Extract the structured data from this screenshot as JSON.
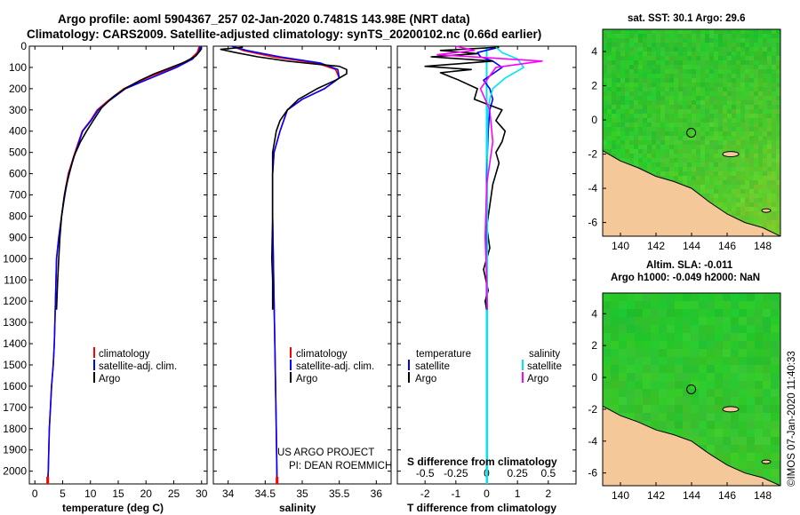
{
  "title": {
    "line1": "Argo profile: aoml 5904367_257 02-Jan-2020 0.7481S 143.98E (NRT data)",
    "line2": "Climatology: CARS2009. Satellite-adjusted climatology: synTS_20200102.nc (0.66d earlier)"
  },
  "colors": {
    "climatology": "#ff0000",
    "satellite": "#0000ff",
    "argo": "#000000",
    "salinity_satellite": "#00e5ee",
    "salinity_argo": "#ff00ff",
    "land": "#f5c89a",
    "sea_green": "#3ec83a"
  },
  "chart_data": [
    {
      "type": "line",
      "id": "temperature",
      "xlabel": "temperature (deg C)",
      "ylabel": "",
      "xlim": [
        -1,
        31
      ],
      "ylim": [
        2060,
        0
      ],
      "xticks": [
        0,
        5,
        10,
        15,
        20,
        25,
        30
      ],
      "yticks": [
        0,
        100,
        200,
        300,
        400,
        500,
        600,
        700,
        800,
        900,
        1000,
        1100,
        1200,
        1300,
        1400,
        1500,
        1600,
        1700,
        1800,
        1900,
        2000
      ],
      "series": [
        {
          "name": "climatology",
          "color": "#ff0000",
          "x": [
            29.6,
            29.2,
            28.0,
            25.0,
            21.0,
            18.5,
            16.0,
            13.0,
            11.2,
            10.0,
            8.5,
            7.2,
            6.0,
            5.3,
            4.8,
            4.3,
            3.9,
            3.7,
            3.5,
            3.3,
            3.0,
            2.8,
            2.6,
            2.5,
            2.4,
            2.3
          ],
          "y": [
            0,
            30,
            60,
            100,
            140,
            170,
            200,
            260,
            300,
            350,
            400,
            500,
            600,
            700,
            800,
            900,
            1000,
            1200,
            1400,
            1500,
            1600,
            1700,
            1800,
            1900,
            2000,
            2060
          ]
        },
        {
          "name": "satellite-adj. clim.",
          "color": "#0000ff",
          "x": [
            29.8,
            29.4,
            28.4,
            25.5,
            21.8,
            19.0,
            16.3,
            13.2,
            11.4,
            10.1,
            8.6,
            7.3,
            6.1,
            5.4,
            4.8,
            4.3,
            3.9,
            3.7,
            3.5,
            3.3,
            3.0,
            2.8,
            2.6,
            2.5,
            2.4,
            2.3
          ],
          "y": [
            0,
            30,
            60,
            100,
            140,
            170,
            200,
            260,
            300,
            350,
            400,
            500,
            600,
            700,
            800,
            900,
            1000,
            1200,
            1400,
            1500,
            1600,
            1700,
            1800,
            1900,
            2000,
            2060
          ]
        },
        {
          "name": "Argo",
          "color": "#000000",
          "x": [
            30.0,
            29.8,
            29.0,
            27.0,
            24.0,
            21.5,
            19.0,
            16.5,
            14.0,
            12.0,
            10.5,
            9.3,
            8.2,
            7.0,
            6.2,
            5.6,
            5.2,
            4.8,
            4.5,
            4.3,
            4.1,
            3.9
          ],
          "y": [
            5,
            20,
            45,
            75,
            105,
            130,
            160,
            195,
            240,
            290,
            350,
            400,
            450,
            520,
            600,
            660,
            720,
            800,
            900,
            1000,
            1100,
            1240
          ]
        }
      ]
    },
    {
      "type": "line",
      "id": "salinity",
      "xlabel": "salinity",
      "ylabel": "",
      "xlim": [
        33.8,
        36.2
      ],
      "ylim": [
        2060,
        0
      ],
      "xticks": [
        34,
        34.5,
        35,
        35.5,
        36
      ],
      "series": [
        {
          "name": "climatology",
          "color": "#ff0000",
          "x": [
            34.05,
            34.2,
            34.6,
            35.2,
            35.45,
            35.5,
            35.3,
            35.0,
            34.8,
            34.7,
            34.62,
            34.6,
            34.6,
            34.61,
            34.62,
            34.63,
            34.64,
            34.65,
            34.66
          ],
          "y": [
            0,
            20,
            50,
            80,
            110,
            150,
            200,
            250,
            300,
            400,
            500,
            600,
            800,
            1000,
            1200,
            1400,
            1600,
            1800,
            2060
          ]
        },
        {
          "name": "satellite-adj. clim.",
          "color": "#0000ff",
          "x": [
            34.05,
            34.25,
            34.7,
            35.25,
            35.48,
            35.5,
            35.3,
            35.0,
            34.8,
            34.7,
            34.62,
            34.6,
            34.6,
            34.61,
            34.62,
            34.63,
            34.64,
            34.65,
            34.66
          ],
          "y": [
            0,
            20,
            50,
            80,
            110,
            150,
            200,
            250,
            300,
            400,
            500,
            600,
            800,
            1000,
            1200,
            1400,
            1600,
            1800,
            2060
          ]
        },
        {
          "name": "Argo",
          "color": "#000000",
          "x": [
            34.2,
            33.9,
            34.1,
            34.4,
            34.8,
            35.2,
            35.5,
            35.6,
            35.6,
            35.45,
            35.2,
            34.95,
            34.8,
            34.7,
            34.65,
            34.6,
            34.6,
            34.6,
            34.59,
            34.6,
            34.6
          ],
          "y": [
            5,
            15,
            30,
            50,
            70,
            85,
            95,
            110,
            130,
            160,
            200,
            250,
            300,
            350,
            400,
            500,
            600,
            800,
            1000,
            1100,
            1240
          ]
        }
      ]
    },
    {
      "type": "line",
      "id": "difference",
      "xlabel": "T difference from climatology",
      "xlabel2": "S difference from climatology",
      "xlim": [
        -2.9,
        2.9
      ],
      "ylim": [
        2060,
        0
      ],
      "xticks": [
        -2,
        -1,
        0,
        1,
        2
      ],
      "xticks2_labels": [
        "-0.5",
        "-0.25",
        "0",
        "0.25",
        "0.5"
      ],
      "legend": {
        "temperature_header": "temperature",
        "salinity_header": "salinity",
        "satellite": "satellite",
        "argo": "Argo"
      },
      "series": [
        {
          "name": "temperature satellite",
          "color": "#0000ff",
          "x": [
            0.4,
            -0.3,
            -0.2,
            0.2,
            0.5,
            0.2,
            -0.1,
            0.1,
            0.2,
            0.1,
            0.05,
            0,
            0,
            0,
            0
          ],
          "y": [
            5,
            30,
            50,
            70,
            100,
            130,
            160,
            200,
            250,
            300,
            400,
            600,
            900,
            1200,
            1240
          ]
        },
        {
          "name": "temperature Argo",
          "color": "#000000",
          "x": [
            0.4,
            -1.5,
            -0.3,
            -1.8,
            0.2,
            -2.0,
            -0.5,
            -1.5,
            -0.9,
            -0.3,
            -0.4,
            0.5,
            0.3,
            0.6,
            0.5,
            0.3,
            0.4,
            0.2,
            0.1,
            0,
            0.1,
            -0.1,
            0.05,
            -0.05,
            0
          ],
          "y": [
            5,
            20,
            35,
            50,
            70,
            95,
            110,
            125,
            160,
            200,
            250,
            300,
            350,
            400,
            450,
            500,
            550,
            650,
            750,
            850,
            950,
            1050,
            1150,
            1200,
            1240
          ]
        },
        {
          "name": "salinity satellite",
          "color": "#00e5ee",
          "x": [
            0.3,
            0.5,
            1.0,
            1.2,
            0.6,
            0.2,
            0.1,
            0.05,
            0.02,
            0.02,
            0.02,
            0.02,
            0.02,
            0.02,
            0.02
          ],
          "y": [
            5,
            30,
            60,
            100,
            150,
            200,
            250,
            300,
            400,
            600,
            1000,
            1400,
            1800,
            2000,
            2060
          ]
        },
        {
          "name": "salinity Argo",
          "color": "#ff00ff",
          "x": [
            -1.0,
            -0.4,
            -1.6,
            1.8,
            0.3,
            -0.2,
            0.1,
            0.2,
            0.0,
            -0.05,
            0.0,
            0.02
          ],
          "y": [
            0,
            20,
            40,
            70,
            100,
            200,
            300,
            450,
            650,
            900,
            1100,
            1240
          ]
        }
      ]
    },
    {
      "type": "heatmap",
      "id": "sst_map",
      "title": "sat. SST: 30.1  Argo: 29.6",
      "xlim": [
        139,
        149
      ],
      "ylim": [
        -6.8,
        5.3
      ],
      "xticks": [
        140,
        142,
        144,
        146,
        148
      ],
      "yticks": [
        4,
        2,
        0,
        -2,
        -4,
        -6
      ],
      "argo_position": [
        143.98,
        -0.7481
      ]
    },
    {
      "type": "heatmap",
      "id": "sla_map",
      "title": "Altim. SLA: -0.011",
      "title2": "Argo h1000: -0.049 h2000: NaN",
      "xlim": [
        139,
        149
      ],
      "ylim": [
        -6.8,
        5.3
      ],
      "xticks": [
        140,
        142,
        144,
        146,
        148
      ],
      "yticks": [
        4,
        2,
        0,
        -2,
        -4,
        -6
      ],
      "argo_position": [
        143.98,
        -0.7481
      ]
    }
  ],
  "notes": {
    "project": "US ARGO PROJECT",
    "pi": "PI: DEAN ROEMMICH",
    "stamp": "©IMOS 07-Jan-2020 11:40:33"
  }
}
